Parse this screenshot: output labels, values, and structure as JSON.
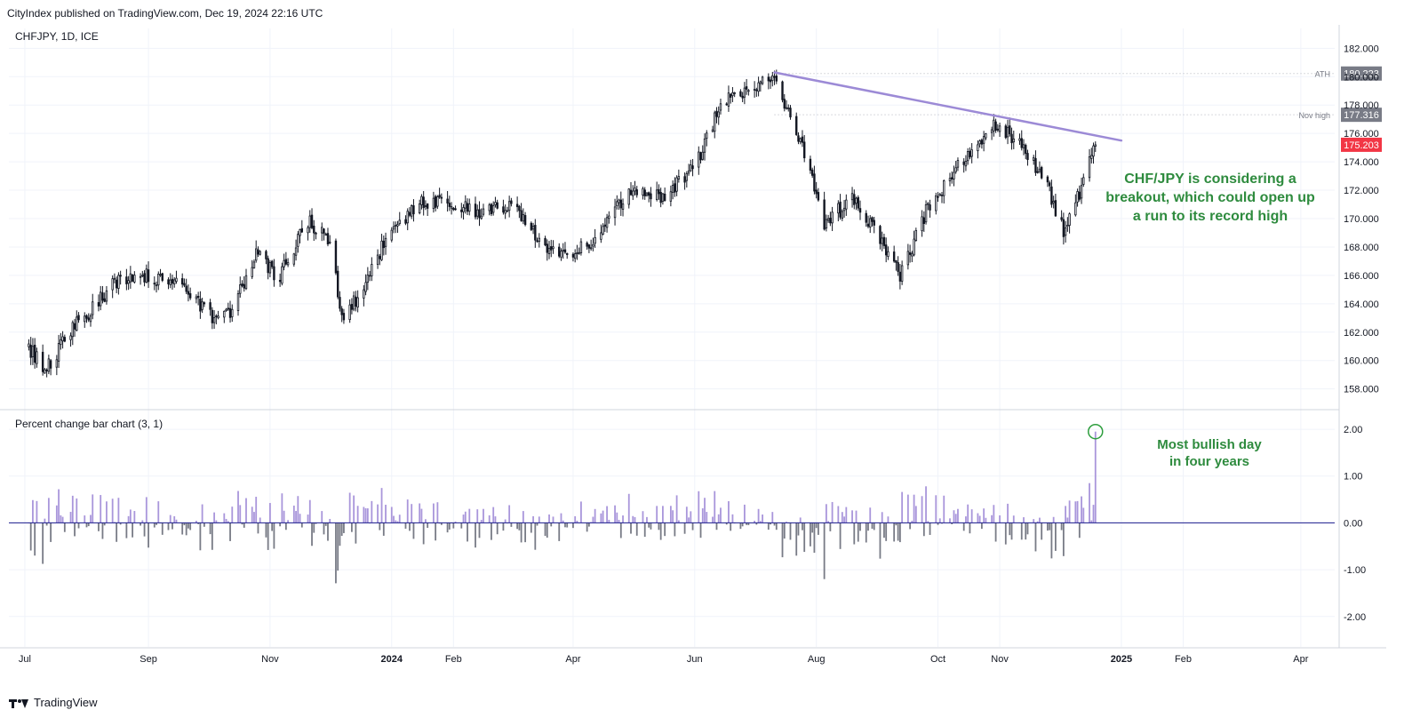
{
  "header": {
    "publisher_line": "CityIndex published on TradingView.com, Dec 19, 2024 22:16 UTC"
  },
  "footer": {
    "brand": "TradingView"
  },
  "colors": {
    "candle": "#131722",
    "trendline": "#9c8ad6",
    "bar_up": "#a996db",
    "bar_down": "#787b86",
    "zero_line": "#1a1a8c",
    "price_badge": "#f23645",
    "level_badge": "#787b86",
    "annotation": "#2e8b3e",
    "grid": "#f0f3fa"
  },
  "chart_data": [
    {
      "type": "candlestick",
      "title": "CHFJPY, 1D, ICE",
      "x_tick_labels": [
        "Jul",
        "Sep",
        "Nov",
        "2024",
        "Feb",
        "Apr",
        "Jun",
        "Aug",
        "Oct",
        "Nov",
        "2025",
        "Feb",
        "Apr"
      ],
      "y_tick_labels": [
        "182.000",
        "180.000",
        "178.000",
        "176.000",
        "174.000",
        "172.000",
        "170.000",
        "168.000",
        "166.000",
        "164.000",
        "162.000",
        "160.000",
        "158.000"
      ],
      "ylim": [
        156.6,
        183.4
      ],
      "grid": true,
      "anchors": [
        {
          "date": "2023-07-01",
          "value": 161.2
        },
        {
          "date": "2023-07-12",
          "value": 159.4
        },
        {
          "date": "2023-07-25",
          "value": 162.5
        },
        {
          "date": "2023-08-03",
          "value": 163.4
        },
        {
          "date": "2023-08-15",
          "value": 165.6
        },
        {
          "date": "2023-09-01",
          "value": 166.1
        },
        {
          "date": "2023-09-20",
          "value": 165.0
        },
        {
          "date": "2023-10-05",
          "value": 162.6
        },
        {
          "date": "2023-10-12",
          "value": 163.5
        },
        {
          "date": "2023-10-25",
          "value": 167.5
        },
        {
          "date": "2023-11-05",
          "value": 165.8
        },
        {
          "date": "2023-11-20",
          "value": 169.8
        },
        {
          "date": "2023-12-01",
          "value": 168.4
        },
        {
          "date": "2023-12-07",
          "value": 163.2
        },
        {
          "date": "2023-12-15",
          "value": 164.5
        },
        {
          "date": "2023-12-30",
          "value": 168.8
        },
        {
          "date": "2024-01-15",
          "value": 171.2
        },
        {
          "date": "2024-02-01",
          "value": 171.0
        },
        {
          "date": "2024-02-15",
          "value": 170.3
        },
        {
          "date": "2024-03-01",
          "value": 171.0
        },
        {
          "date": "2024-03-18",
          "value": 167.9
        },
        {
          "date": "2024-04-01",
          "value": 167.5
        },
        {
          "date": "2024-04-15",
          "value": 168.8
        },
        {
          "date": "2024-04-29",
          "value": 172.2
        },
        {
          "date": "2024-05-15",
          "value": 171.4
        },
        {
          "date": "2024-06-01",
          "value": 173.6
        },
        {
          "date": "2024-06-15",
          "value": 178.4
        },
        {
          "date": "2024-07-10",
          "value": 179.9
        },
        {
          "date": "2024-07-25",
          "value": 175.0
        },
        {
          "date": "2024-08-05",
          "value": 169.8
        },
        {
          "date": "2024-08-20",
          "value": 171.4
        },
        {
          "date": "2024-09-01",
          "value": 168.6
        },
        {
          "date": "2024-09-12",
          "value": 166.0
        },
        {
          "date": "2024-09-25",
          "value": 170.5
        },
        {
          "date": "2024-10-10",
          "value": 173.4
        },
        {
          "date": "2024-10-28",
          "value": 176.6
        },
        {
          "date": "2024-11-12",
          "value": 175.3
        },
        {
          "date": "2024-11-25",
          "value": 172.3
        },
        {
          "date": "2024-12-03",
          "value": 169.0
        },
        {
          "date": "2024-12-13",
          "value": 172.5
        },
        {
          "date": "2024-12-19",
          "value": 175.2
        }
      ],
      "trendline": [
        {
          "date": "2024-07-11",
          "value": 180.3
        },
        {
          "date": "2025-01-01",
          "value": 175.5
        }
      ],
      "levels": [
        {
          "label": "ATH",
          "value": 180.223,
          "badge": "180.223"
        },
        {
          "label": "Nov high",
          "value": 177.316,
          "badge": "177.316"
        }
      ],
      "last_price": {
        "value": 175.203,
        "badge": "175.203"
      },
      "annotation": "CHF/JPY is considering a breakout, which could open up a run to its record high"
    },
    {
      "type": "bar",
      "title": "Percent change bar chart (3, 1)",
      "y_tick_labels": [
        "2.00",
        "1.00",
        "0.00",
        "-1.00",
        "-2.00"
      ],
      "ylim": [
        -2.65,
        2.4
      ],
      "highlight": {
        "date": "2024-12-19",
        "value": 1.95
      },
      "annotation": "Most bullish day in four years"
    }
  ]
}
